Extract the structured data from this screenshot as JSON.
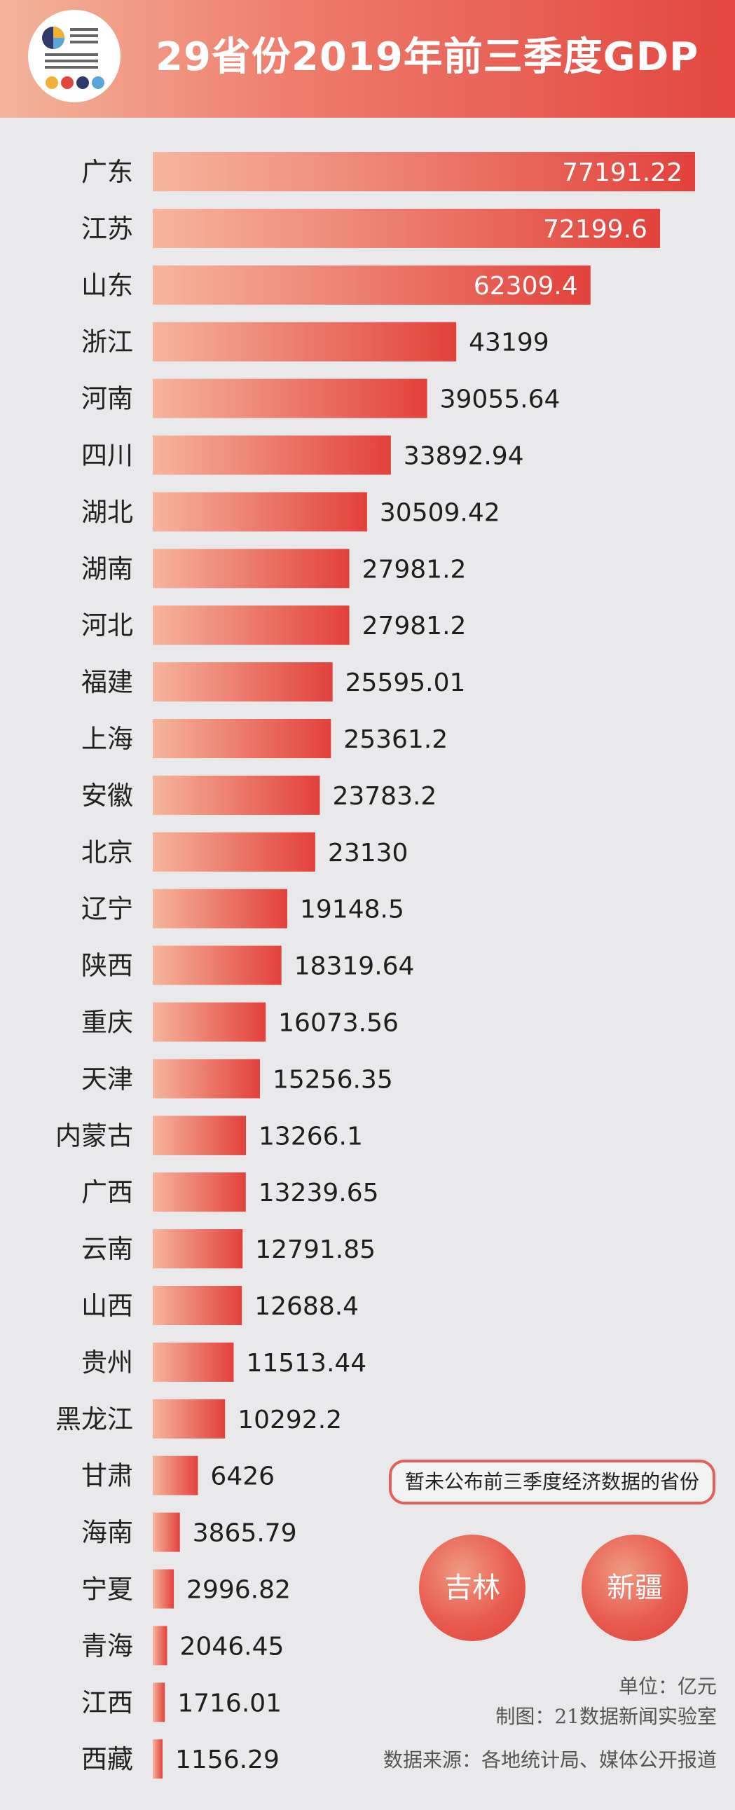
{
  "title": "29省份2019年前三季度GDP",
  "colors": {
    "bar_start": "#f6b59d",
    "bar_end": "#e2413b",
    "header_end": "#e2463f"
  },
  "logo": {
    "icon": "newspaper-chart-logo-icon"
  },
  "chart_data": {
    "type": "bar",
    "orientation": "horizontal",
    "categories": [
      "广东",
      "江苏",
      "山东",
      "浙江",
      "河南",
      "四川",
      "湖北",
      "湖南",
      "河北",
      "福建",
      "上海",
      "安徽",
      "北京",
      "辽宁",
      "陕西",
      "重庆",
      "天津",
      "内蒙古",
      "广西",
      "云南",
      "山西",
      "贵州",
      "黑龙江",
      "甘肃",
      "海南",
      "宁夏",
      "青海",
      "江西",
      "西藏"
    ],
    "values": [
      77191.22,
      72199.6,
      62309.4,
      43199,
      39055.64,
      33892.94,
      30509.42,
      27981.2,
      27981.2,
      25595.01,
      25361.2,
      23783.2,
      23130,
      19148.5,
      18319.64,
      16073.56,
      15256.35,
      13266.1,
      13239.65,
      12791.85,
      12688.4,
      11513.44,
      10292.2,
      6426,
      3865.79,
      2996.82,
      2046.45,
      1716.01,
      1156.29
    ],
    "labels": [
      "77191.22",
      "72199.6",
      "62309.4",
      "43199",
      "39055.64",
      "33892.94",
      "30509.42",
      "27981.2",
      "27981.2",
      "25595.01",
      "25361.2",
      "23783.2",
      "23130",
      "19148.5",
      "18319.64",
      "16073.56",
      "15256.35",
      "13266.1",
      "13239.65",
      "12791.85",
      "12688.4",
      "11513.44",
      "10292.2",
      "6426",
      "3865.79",
      "2996.82",
      "2046.45",
      "1716.01",
      "1156.29"
    ],
    "unit": "亿元",
    "grid": false,
    "legend": "none"
  },
  "note": {
    "text": "暂未公布前三季度经济数据的省份",
    "provinces": [
      "吉林",
      "新疆"
    ]
  },
  "footer": {
    "unit": "单位：亿元",
    "credit": "制图：21数据新闻实验室",
    "source": "数据来源：各地统计局、媒体公开报道"
  }
}
